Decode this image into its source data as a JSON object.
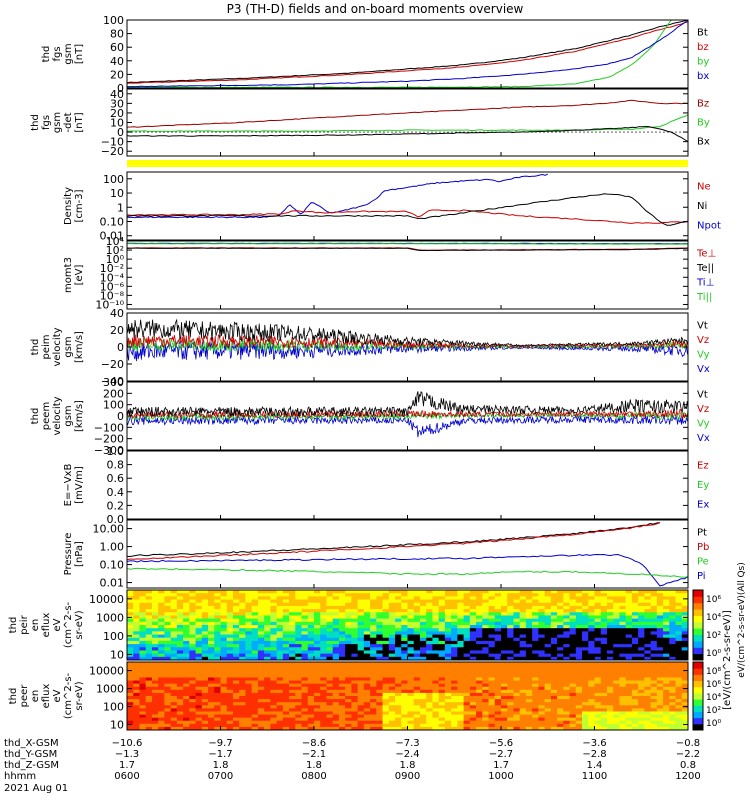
{
  "title": "P3 (TH-D) fields and on-board moments overview",
  "colors": {
    "black": "#000000",
    "red": "#cc0000",
    "green": "#22cc22",
    "blue": "#0000cc",
    "yellow": "#ffff00",
    "darkred": "#990000"
  },
  "chart_data": [
    {
      "type": "line",
      "id": "fgs_gsm",
      "ylabel_lines": [
        "thd",
        "fgs",
        "gsm",
        "[nT]"
      ],
      "ylim": [
        0,
        100
      ],
      "yticks": [
        0,
        20,
        40,
        60,
        80,
        100
      ],
      "yticklabels": [
        "0",
        "20",
        "40",
        "60",
        "80",
        "100"
      ],
      "legend": [
        {
          "name": "Bt",
          "color": "#000000"
        },
        {
          "name": "bz",
          "color": "#cc0000"
        },
        {
          "name": "by",
          "color": "#22cc22"
        },
        {
          "name": "bx",
          "color": "#0000cc"
        }
      ],
      "series": [
        {
          "name": "Bt",
          "color": "#000000",
          "x": [
            0,
            0.2,
            0.4,
            0.6,
            0.7,
            0.8,
            0.9,
            0.95,
            1.0
          ],
          "y": [
            8,
            14,
            22,
            34,
            44,
            58,
            78,
            90,
            100
          ]
        },
        {
          "name": "bz",
          "color": "#cc0000",
          "x": [
            0,
            0.2,
            0.4,
            0.6,
            0.7,
            0.8,
            0.9,
            0.95,
            1.0
          ],
          "y": [
            7,
            12,
            20,
            31,
            40,
            54,
            74,
            86,
            97
          ]
        },
        {
          "name": "by",
          "color": "#22cc22",
          "x": [
            0,
            0.5,
            0.7,
            0.8,
            0.86,
            0.9,
            0.94,
            0.97
          ],
          "y": [
            1,
            1,
            2,
            6,
            16,
            34,
            64,
            100
          ]
        },
        {
          "name": "bx",
          "color": "#0000cc",
          "x": [
            0,
            0.3,
            0.5,
            0.6,
            0.7,
            0.8,
            0.86,
            0.9,
            0.95,
            1.0
          ],
          "y": [
            2,
            5,
            10,
            14,
            20,
            28,
            36,
            45,
            70,
            100
          ]
        }
      ]
    },
    {
      "type": "line",
      "id": "fgs_gsm_det",
      "ylabel_lines": [
        "thd",
        "fgs",
        "gsm",
        "-det",
        "[nT]"
      ],
      "ylim": [
        -25,
        45
      ],
      "yticks": [
        -20,
        -10,
        0,
        10,
        20,
        30,
        40
      ],
      "yticklabels": [
        "−20",
        "−10",
        "0",
        "10",
        "20",
        "30",
        "40"
      ],
      "legend": [
        {
          "name": "Bz",
          "color": "#990000"
        },
        {
          "name": "By",
          "color": "#22cc22"
        },
        {
          "name": "Bx",
          "color": "#000000"
        }
      ],
      "series": [
        {
          "name": "Bz",
          "color": "#990000",
          "x": [
            0,
            0.2,
            0.4,
            0.5,
            0.6,
            0.7,
            0.8,
            0.85,
            0.9,
            0.95,
            1.0
          ],
          "y": [
            5,
            10,
            17,
            20,
            23,
            26,
            28,
            30,
            33,
            30,
            30
          ]
        },
        {
          "name": "By",
          "color": "#22cc22",
          "x": [
            0,
            0.3,
            0.5,
            0.7,
            0.8,
            0.9,
            0.95,
            1.0
          ],
          "y": [
            1,
            1,
            2,
            2,
            2,
            3,
            6,
            18
          ]
        },
        {
          "name": "Bx",
          "color": "#000000",
          "x": [
            0,
            0.2,
            0.4,
            0.6,
            0.7,
            0.8,
            0.88,
            0.93,
            0.97,
            1.0
          ],
          "y": [
            -4,
            -4,
            -3,
            -1,
            0,
            2,
            4,
            6,
            0,
            -10
          ]
        }
      ]
    },
    {
      "type": "line",
      "id": "density",
      "ylog": true,
      "ylabel_lines": [
        "Density",
        "[cm-3]"
      ],
      "ylim": [
        0.005,
        300
      ],
      "yticks": [
        0.01,
        0.1,
        1,
        10,
        100
      ],
      "yticklabels": [
        "0.01",
        "0.10",
        "1",
        "10",
        "100"
      ],
      "legend": [
        {
          "name": "Ne",
          "color": "#cc0000"
        },
        {
          "name": "Ni",
          "color": "#000000"
        },
        {
          "name": "Npot",
          "color": "#0000cc"
        }
      ],
      "series": [
        {
          "name": "Npot",
          "color": "#0000cc",
          "x": [
            0,
            0.25,
            0.27,
            0.29,
            0.31,
            0.33,
            0.36,
            0.38,
            0.4,
            0.42,
            0.44,
            0.46,
            0.5,
            0.55,
            0.6,
            0.65,
            0.66,
            0.7,
            0.75
          ],
          "y": [
            0.2,
            0.2,
            0.25,
            1.5,
            0.3,
            2.5,
            0.4,
            0.5,
            0.8,
            1.2,
            3,
            15,
            25,
            50,
            70,
            90,
            60,
            130,
            200
          ]
        },
        {
          "name": "Ne",
          "color": "#cc0000",
          "x": [
            0,
            0.2,
            0.28,
            0.3,
            0.35,
            0.4,
            0.5,
            0.52,
            0.54,
            0.6,
            0.7,
            0.8,
            0.9,
            0.95,
            1.0
          ],
          "y": [
            0.3,
            0.3,
            0.35,
            0.6,
            0.4,
            0.5,
            0.5,
            0.2,
            0.6,
            0.6,
            0.25,
            0.15,
            0.08,
            0.08,
            0.1
          ]
        },
        {
          "name": "Ni",
          "color": "#000000",
          "x": [
            0,
            0.3,
            0.5,
            0.52,
            0.6,
            0.7,
            0.8,
            0.86,
            0.9,
            0.93,
            0.96,
            1.0
          ],
          "y": [
            0.25,
            0.25,
            0.25,
            0.15,
            0.4,
            1.5,
            5,
            9,
            5,
            0.4,
            0.05,
            0.1
          ]
        }
      ]
    },
    {
      "type": "line",
      "id": "momt",
      "ylog": true,
      "ylabel_lines": [
        "momt3",
        "[eV]"
      ],
      "ylim": [
        1e-11,
        10000.0
      ],
      "yticks": [
        1e-10,
        1e-08,
        1e-06,
        0.0001,
        0.01,
        1,
        100,
        10000.0
      ],
      "yticklabels": [
        "10⁻¹⁰",
        "10⁻⁸",
        "10⁻⁶",
        "10⁻⁴",
        "10⁻²",
        "10⁰",
        "10²",
        "10⁴"
      ],
      "legend": [
        {
          "name": "Te⊥",
          "color": "#cc0000"
        },
        {
          "name": "Te||",
          "color": "#000000"
        },
        {
          "name": "Ti⊥",
          "color": "#0000cc"
        },
        {
          "name": "Ti||",
          "color": "#22cc22"
        }
      ],
      "series": [
        {
          "name": "Ti⊥",
          "color": "#0000cc",
          "x": [
            0,
            0.5,
            1.0
          ],
          "y": [
            3000,
            3000,
            2500
          ]
        },
        {
          "name": "Ti||",
          "color": "#22cc22",
          "x": [
            0,
            0.5,
            1.0
          ],
          "y": [
            2500,
            2500,
            2000
          ]
        },
        {
          "name": "Te⊥",
          "color": "#cc0000",
          "x": [
            0,
            0.5,
            0.52,
            0.9,
            1.0
          ],
          "y": [
            300,
            300,
            100,
            150,
            300
          ]
        },
        {
          "name": "Te||",
          "color": "#000000",
          "x": [
            0,
            0.5,
            0.52,
            0.9,
            1.0
          ],
          "y": [
            250,
            250,
            80,
            130,
            250
          ]
        }
      ]
    },
    {
      "type": "line",
      "id": "peim",
      "ylabel_lines": [
        "thd",
        "peim",
        "velocity",
        "gsm",
        "[km/s]"
      ],
      "ylim": [
        -40,
        40
      ],
      "yticks": [
        -40,
        -20,
        0,
        20,
        40
      ],
      "yticklabels": [
        "−40",
        "−20",
        "0",
        "20",
        "40"
      ],
      "legend": [
        {
          "name": "Vt",
          "color": "#000000"
        },
        {
          "name": "Vz",
          "color": "#cc0000"
        },
        {
          "name": "Vy",
          "color": "#22cc22"
        },
        {
          "name": "Vx",
          "color": "#0000cc"
        }
      ],
      "noise": [
        {
          "name": "Vx",
          "color": "#0000cc",
          "x": [
            0,
            0.3,
            0.5,
            0.7,
            0.9,
            1.0
          ],
          "center": [
            -5,
            -4,
            -2,
            -1,
            -2,
            -4
          ],
          "amp": [
            12,
            10,
            5,
            1,
            3,
            8
          ]
        },
        {
          "name": "Vy",
          "color": "#22cc22",
          "x": [
            0,
            0.3,
            0.5,
            0.7,
            0.9,
            1.0
          ],
          "center": [
            3,
            2,
            1,
            0,
            1,
            2
          ],
          "amp": [
            8,
            7,
            4,
            1,
            2,
            5
          ]
        },
        {
          "name": "Vz",
          "color": "#cc0000",
          "x": [
            0,
            0.3,
            0.5,
            0.7,
            0.9,
            1.0
          ],
          "center": [
            8,
            6,
            3,
            1,
            2,
            4
          ],
          "amp": [
            8,
            7,
            4,
            1,
            2,
            5
          ]
        },
        {
          "name": "Vt",
          "color": "#000000",
          "x": [
            0,
            0.3,
            0.5,
            0.7,
            0.9,
            1.0
          ],
          "center": [
            22,
            16,
            7,
            2,
            4,
            8
          ],
          "amp": [
            12,
            10,
            5,
            1,
            2,
            4
          ]
        }
      ]
    },
    {
      "type": "line",
      "id": "peem",
      "ylabel_lines": [
        "thd",
        "peem",
        "velocity",
        "gsm",
        "[km/s]"
      ],
      "ylim": [
        -300,
        300
      ],
      "yticks": [
        -300,
        -200,
        -100,
        0,
        100,
        200,
        300
      ],
      "yticklabels": [
        "−300",
        "−200",
        "−100",
        "0",
        "100",
        "200",
        "300"
      ],
      "legend": [
        {
          "name": "Vt",
          "color": "#000000"
        },
        {
          "name": "Vz",
          "color": "#cc0000"
        },
        {
          "name": "Vy",
          "color": "#22cc22"
        },
        {
          "name": "Vx",
          "color": "#0000cc"
        }
      ],
      "noise": [
        {
          "name": "Vx",
          "color": "#0000cc",
          "x": [
            0,
            0.5,
            0.52,
            0.6,
            0.8,
            1.0
          ],
          "center": [
            -40,
            -40,
            -150,
            -40,
            -30,
            -40
          ],
          "amp": [
            40,
            30,
            60,
            30,
            30,
            40
          ]
        },
        {
          "name": "Vy",
          "color": "#22cc22",
          "x": [
            0,
            0.5,
            0.6,
            0.8,
            1.0
          ],
          "center": [
            -10,
            0,
            5,
            10,
            0
          ],
          "amp": [
            30,
            30,
            20,
            20,
            40
          ]
        },
        {
          "name": "Vz",
          "color": "#cc0000",
          "x": [
            0,
            0.5,
            0.6,
            0.8,
            1.0
          ],
          "center": [
            10,
            20,
            15,
            20,
            20
          ],
          "amp": [
            30,
            30,
            20,
            20,
            40
          ]
        },
        {
          "name": "Vt",
          "color": "#000000",
          "x": [
            0,
            0.5,
            0.52,
            0.6,
            0.8,
            0.9,
            1.0
          ],
          "center": [
            40,
            40,
            150,
            60,
            50,
            90,
            80
          ],
          "amp": [
            40,
            40,
            80,
            40,
            30,
            60,
            60
          ]
        }
      ]
    },
    {
      "type": "line",
      "id": "efield",
      "ylabel_lines": [
        "E=−VxB",
        "[mV/m]"
      ],
      "ylim": [
        0,
        1
      ],
      "yticks": [
        0,
        0.2,
        0.4,
        0.6,
        0.8,
        1.0
      ],
      "yticklabels": [
        "0.0",
        "0.2",
        "0.4",
        "0.6",
        "0.8",
        "1.0"
      ],
      "legend": [
        {
          "name": "Ez",
          "color": "#cc0000"
        },
        {
          "name": "Ey",
          "color": "#22cc22"
        },
        {
          "name": "Ex",
          "color": "#0000cc"
        }
      ],
      "series": []
    },
    {
      "type": "line",
      "id": "pressure",
      "ylog": true,
      "ylabel_lines": [
        "Pressure",
        "[nPa]"
      ],
      "ylim": [
        0.005,
        30
      ],
      "yticks": [
        0.01,
        0.1,
        1,
        10
      ],
      "yticklabels": [
        "0.01",
        "0.10",
        "1.00",
        "10.00"
      ],
      "legend": [
        {
          "name": "Pt",
          "color": "#000000"
        },
        {
          "name": "Pb",
          "color": "#cc0000"
        },
        {
          "name": "Pe",
          "color": "#22cc22"
        },
        {
          "name": "Pi",
          "color": "#0000cc"
        }
      ],
      "series": [
        {
          "name": "Pt",
          "color": "#000000",
          "x": [
            0,
            0.2,
            0.4,
            0.6,
            0.7,
            0.8,
            0.9,
            0.95
          ],
          "y": [
            0.3,
            0.5,
            0.9,
            1.8,
            3,
            5.5,
            12,
            22
          ]
        },
        {
          "name": "Pb",
          "color": "#cc0000",
          "x": [
            0,
            0.2,
            0.4,
            0.6,
            0.7,
            0.8,
            0.9,
            0.95
          ],
          "y": [
            0.2,
            0.35,
            0.7,
            1.5,
            2.6,
            5,
            11,
            20
          ]
        },
        {
          "name": "Pi",
          "color": "#0000cc",
          "x": [
            0,
            0.2,
            0.4,
            0.6,
            0.7,
            0.8,
            0.88,
            0.92,
            0.95,
            0.97,
            1.0
          ],
          "y": [
            0.15,
            0.17,
            0.2,
            0.22,
            0.28,
            0.33,
            0.35,
            0.1,
            0.007,
            0.01,
            0.02
          ]
        },
        {
          "name": "Pe",
          "color": "#22cc22",
          "x": [
            0,
            0.2,
            0.35,
            0.5,
            0.6,
            0.7,
            0.8,
            0.9,
            1.0
          ],
          "y": [
            0.06,
            0.05,
            0.04,
            0.03,
            0.03,
            0.04,
            0.04,
            0.03,
            0.02
          ]
        }
      ]
    },
    {
      "type": "heatmap",
      "id": "peir",
      "ylabel_lines": [
        "thd",
        "peir",
        "en",
        "eflux",
        "eV",
        "(cm^2-s-",
        "sr-eV)"
      ],
      "ylog": true,
      "ylim": [
        5,
        30000
      ],
      "yticks": [
        10,
        100,
        1000,
        10000
      ],
      "yticklabels": [
        "10",
        "100",
        "1000",
        "10000"
      ],
      "colorbar_ticks": [
        "10⁶",
        "10⁴",
        "10²",
        "10⁰"
      ]
    },
    {
      "type": "heatmap",
      "id": "peer",
      "ylabel_lines": [
        "thd",
        "peer",
        "en",
        "eflux",
        "eV",
        "(cm^2-s-",
        "sr-eV)"
      ],
      "ylog": true,
      "ylim": [
        5,
        30000
      ],
      "yticks": [
        10,
        100,
        1000,
        10000
      ],
      "yticklabels": [
        "10",
        "100",
        "1000",
        "10000"
      ],
      "colorbar_ticks": [
        "10⁸",
        "10⁶",
        "10⁴",
        "10²",
        "10⁰"
      ]
    }
  ],
  "colorbar_label": "[eV/(cm^2-s-sr-eV)]",
  "colorbar_label_alt": "eV/(cm^2-s-sr-eV)(All Qs)",
  "xaxis": {
    "row_labels": [
      "thd_X-GSM",
      "thd_Y-GSM",
      "thd_Z-GSM",
      "hhmm",
      "2021 Aug 01"
    ],
    "ticks": [
      {
        "x": 0.0,
        "vals": [
          "−10.6",
          "−1.3",
          "1.7",
          "0600"
        ]
      },
      {
        "x": 0.1667,
        "vals": [
          "−9.7",
          "−1.7",
          "1.8",
          "0700"
        ]
      },
      {
        "x": 0.3333,
        "vals": [
          "−8.6",
          "−2.1",
          "1.8",
          "0800"
        ]
      },
      {
        "x": 0.5,
        "vals": [
          "−7.3",
          "−2.4",
          "1.8",
          "0900"
        ]
      },
      {
        "x": 0.6667,
        "vals": [
          "−5.6",
          "−2.7",
          "1.7",
          "1000"
        ]
      },
      {
        "x": 0.8333,
        "vals": [
          "−3.6",
          "−2.8",
          "1.4",
          "1100"
        ]
      },
      {
        "x": 1.0,
        "vals": [
          "−0.8",
          "−2.2",
          "0.8",
          "1200"
        ]
      }
    ]
  }
}
